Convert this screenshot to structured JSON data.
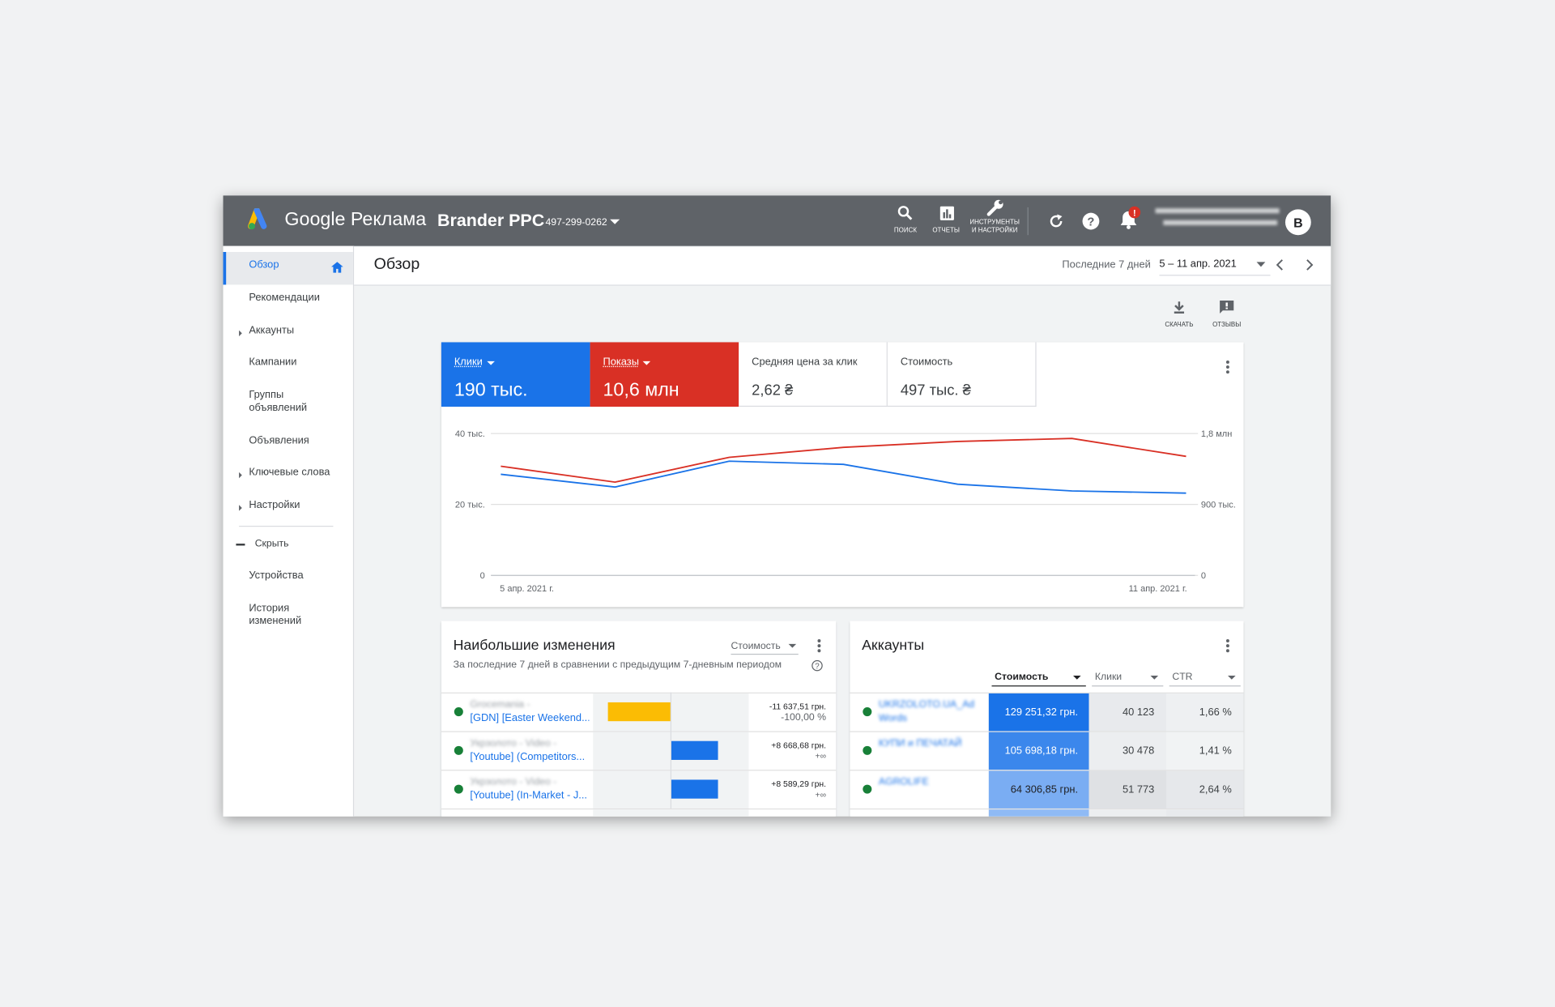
{
  "header": {
    "product": "Google Реклама",
    "account_name": "Brander PPC",
    "account_id": "497-299-0262",
    "tools": [
      {
        "label": "ПОИСК"
      },
      {
        "label": "ОТЧЕТЫ"
      },
      {
        "label": "ИНСТРУМЕНТЫ И НАСТРОЙКИ"
      }
    ],
    "avatar": "B"
  },
  "sidebar": {
    "items": [
      {
        "label": "Обзор",
        "active": true
      },
      {
        "label": "Рекомендации"
      },
      {
        "label": "Аккаунты",
        "expandable": true
      },
      {
        "label": "Кампании"
      },
      {
        "label": "Группы объявлений"
      },
      {
        "label": "Объявления"
      },
      {
        "label": "Ключевые слова",
        "expandable": true
      },
      {
        "label": "Настройки",
        "expandable": true
      }
    ],
    "collapse": "Скрыть",
    "more_items": [
      {
        "label": "Устройства"
      },
      {
        "label": "История изменений"
      }
    ]
  },
  "page": {
    "title": "Обзор",
    "date_preset": "Последние 7 дней",
    "date_range": "5 – 11 апр. 2021",
    "actions": [
      "СКАЧАТЬ",
      "ОТЗЫВЫ"
    ]
  },
  "metrics": [
    {
      "label": "Клики",
      "value": "190 тыс.",
      "color": "#1a73e8"
    },
    {
      "label": "Показы",
      "value": "10,6 млн",
      "color": "#d93025"
    },
    {
      "label": "Средняя цена за клик",
      "value": "2,62 ₴"
    },
    {
      "label": "Стоимость",
      "value": "497 тыс. ₴"
    }
  ],
  "chart_data": {
    "type": "line",
    "categories": [
      "5 апр. 2021 г.",
      null,
      null,
      null,
      null,
      null,
      "11 апр. 2021 г."
    ],
    "series": [
      {
        "name": "Клики",
        "color": "#1a73e8",
        "values": [
          28500,
          24900,
          32200,
          31300,
          25700,
          23800,
          23200
        ]
      },
      {
        "name": "Показы",
        "color": "#d93025",
        "axis": "y2",
        "values": [
          1385000,
          1183000,
          1498000,
          1624000,
          1699000,
          1737000,
          1510000
        ]
      }
    ],
    "ylim": [
      0,
      40000
    ],
    "yticks": [
      0,
      {
        "value": 20000,
        "label": "20 тыс."
      },
      {
        "value": 40000,
        "label": "40 тыс."
      }
    ],
    "y2lim": [
      0,
      1800000
    ],
    "y2ticks": [
      0,
      {
        "value": 900000,
        "label": "900 тыс."
      },
      {
        "value": 1800000,
        "label": "1,8 млн"
      }
    ],
    "grid": true
  },
  "changes": {
    "title": "Наибольшие изменения",
    "subtitle": "За последние 7 дней в сравнении с предыдущим 7-дневным периодом",
    "sort": "Стоимость",
    "rows": [
      {
        "account": "Grocemania -",
        "campaign": "[GDN] [Easter Weekend...",
        "change": -11637.51,
        "change_label": "-11 637,51 грн.",
        "percent": "-100,00 %",
        "color": "#fbbc04"
      },
      {
        "account": "Укрзолото - Video -",
        "campaign": "[Youtube] (Competitors...",
        "change": 8668.68,
        "change_label": "+8 668,68 грн.",
        "percent": "+∞",
        "color": "#1a73e8"
      },
      {
        "account": "Укрзолото - Video -",
        "campaign": "[Youtube] (In-Market - J...",
        "change": 8589.29,
        "change_label": "+8 589,29 грн.",
        "percent": "+∞",
        "color": "#1a73e8"
      }
    ]
  },
  "accounts": {
    "title": "Аккаунты",
    "columns": [
      "Стоимость",
      "Клики",
      "CTR"
    ],
    "rows": [
      {
        "name": "UKRZOLOTO.UA_Ad Words",
        "cost": "129 251,32 грн.",
        "clicks": "40 123",
        "ctr": "1,66 %"
      },
      {
        "name": "КУПИ и ПЕЧАТАЙ",
        "cost": "105 698,18 грн.",
        "clicks": "30 478",
        "ctr": "1,41 %"
      },
      {
        "name": "AGROLIFE",
        "cost": "64 306,85 грн.",
        "clicks": "51 773",
        "ctr": "2,64 %"
      }
    ]
  }
}
